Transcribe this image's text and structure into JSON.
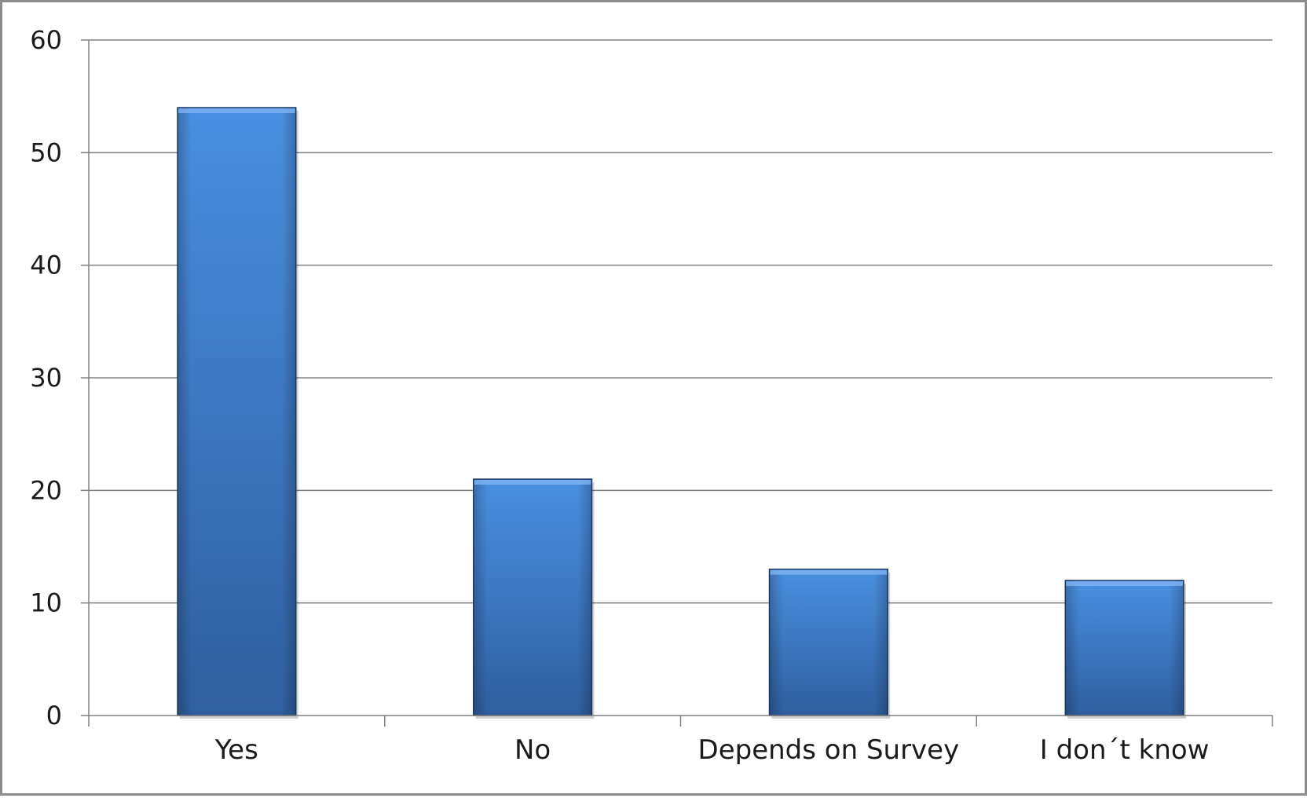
{
  "chart_data": {
    "type": "bar",
    "title": "",
    "xlabel": "",
    "ylabel": "",
    "categories": [
      "Yes",
      "No",
      "Depends on Survey",
      "I don´t know"
    ],
    "values": [
      54,
      21,
      13,
      12
    ],
    "ylim": [
      0,
      60
    ],
    "yticks": [
      0,
      10,
      20,
      30,
      40,
      50,
      60
    ],
    "ytick_labels": [
      "0",
      "10",
      "20",
      "30",
      "40",
      "50",
      "60"
    ],
    "grid": true,
    "legend": "none",
    "colors": {
      "bar_top": "#4a8fe0",
      "bar_bottom": "#2f5f9e",
      "bar_edge": "#1f3f6b",
      "gridline": "#808080",
      "axis": "#808080",
      "frame": "#8c8c8c"
    }
  }
}
